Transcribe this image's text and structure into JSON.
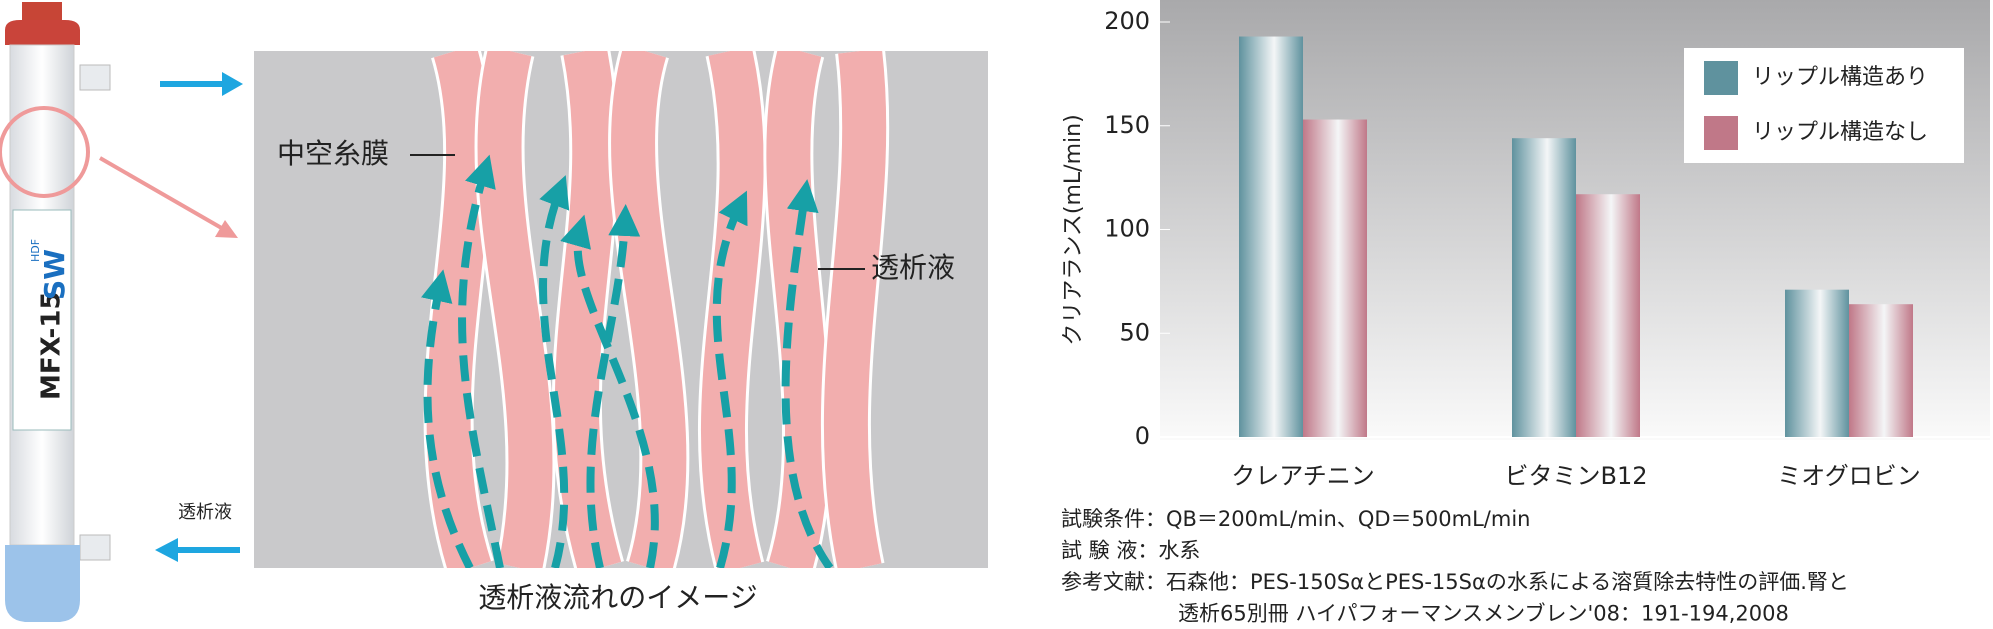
{
  "chart_data": {
    "type": "bar",
    "y_label": "クリアランス(mL/min)",
    "categories": [
      "クレアチニン",
      "ビタミンB12",
      "ミオグロビン"
    ],
    "series": [
      {
        "name": "リップル構造あり",
        "color": "#5f929e",
        "values": [
          193,
          144,
          71
        ]
      },
      {
        "name": "リップル構造なし",
        "color": "#c07888",
        "values": [
          153,
          117,
          64
        ]
      }
    ],
    "ylim": [
      0,
      200
    ],
    "yticks": [
      0,
      50,
      100,
      150,
      200
    ],
    "legend": "upper right"
  },
  "notes": [
    "試験条件：QB＝200mL/min、QD＝500mL/min",
    "試 験 液：水系",
    "参考文献：石森他：PES-150SαとPES-15Sαの水系による溶質除去特性の評価.腎と",
    "透析65別冊 ハイパフォーマンスメンブレン'08：191-194,2008"
  ],
  "illustration": {
    "device_label": "MFX-15",
    "device_model": "SW",
    "device_tag": "HDF",
    "outlet_label": "透析液",
    "membrane_label": "中空糸膜",
    "dialysate_label": "透析液",
    "caption": "透析液流れのイメージ"
  }
}
